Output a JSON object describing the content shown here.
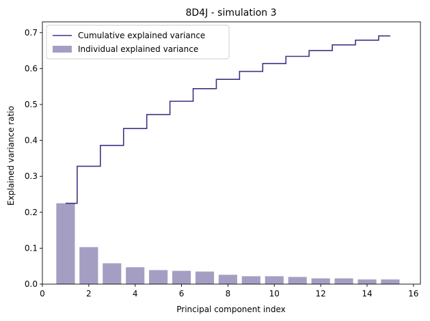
{
  "chart_data": {
    "type": "bar",
    "title": "8D4J - simulation 3",
    "xlabel": "Principal component index",
    "ylabel": "Explained variance ratio",
    "xlim": [
      0,
      16.3
    ],
    "ylim": [
      0,
      0.73
    ],
    "xticks": [
      0,
      2,
      4,
      6,
      8,
      10,
      12,
      14,
      16
    ],
    "yticks": [
      0.0,
      0.1,
      0.2,
      0.3,
      0.4,
      0.5,
      0.6,
      0.7
    ],
    "x": [
      1,
      2,
      3,
      4,
      5,
      6,
      7,
      8,
      9,
      10,
      11,
      12,
      13,
      14,
      15
    ],
    "series": [
      {
        "name": "Individual explained variance",
        "kind": "bar",
        "values": [
          0.225,
          0.103,
          0.058,
          0.047,
          0.039,
          0.037,
          0.035,
          0.026,
          0.022,
          0.022,
          0.02,
          0.016,
          0.016,
          0.013,
          0.013
        ]
      },
      {
        "name": "Cumulative explained variance",
        "kind": "step",
        "values": [
          0.225,
          0.328,
          0.386,
          0.433,
          0.472,
          0.509,
          0.544,
          0.57,
          0.592,
          0.614,
          0.634,
          0.65,
          0.666,
          0.679,
          0.691
        ]
      }
    ],
    "bar_color": "#a59ec3",
    "line_color": "#3b3284",
    "legend_position": "top-left",
    "grid": false
  }
}
